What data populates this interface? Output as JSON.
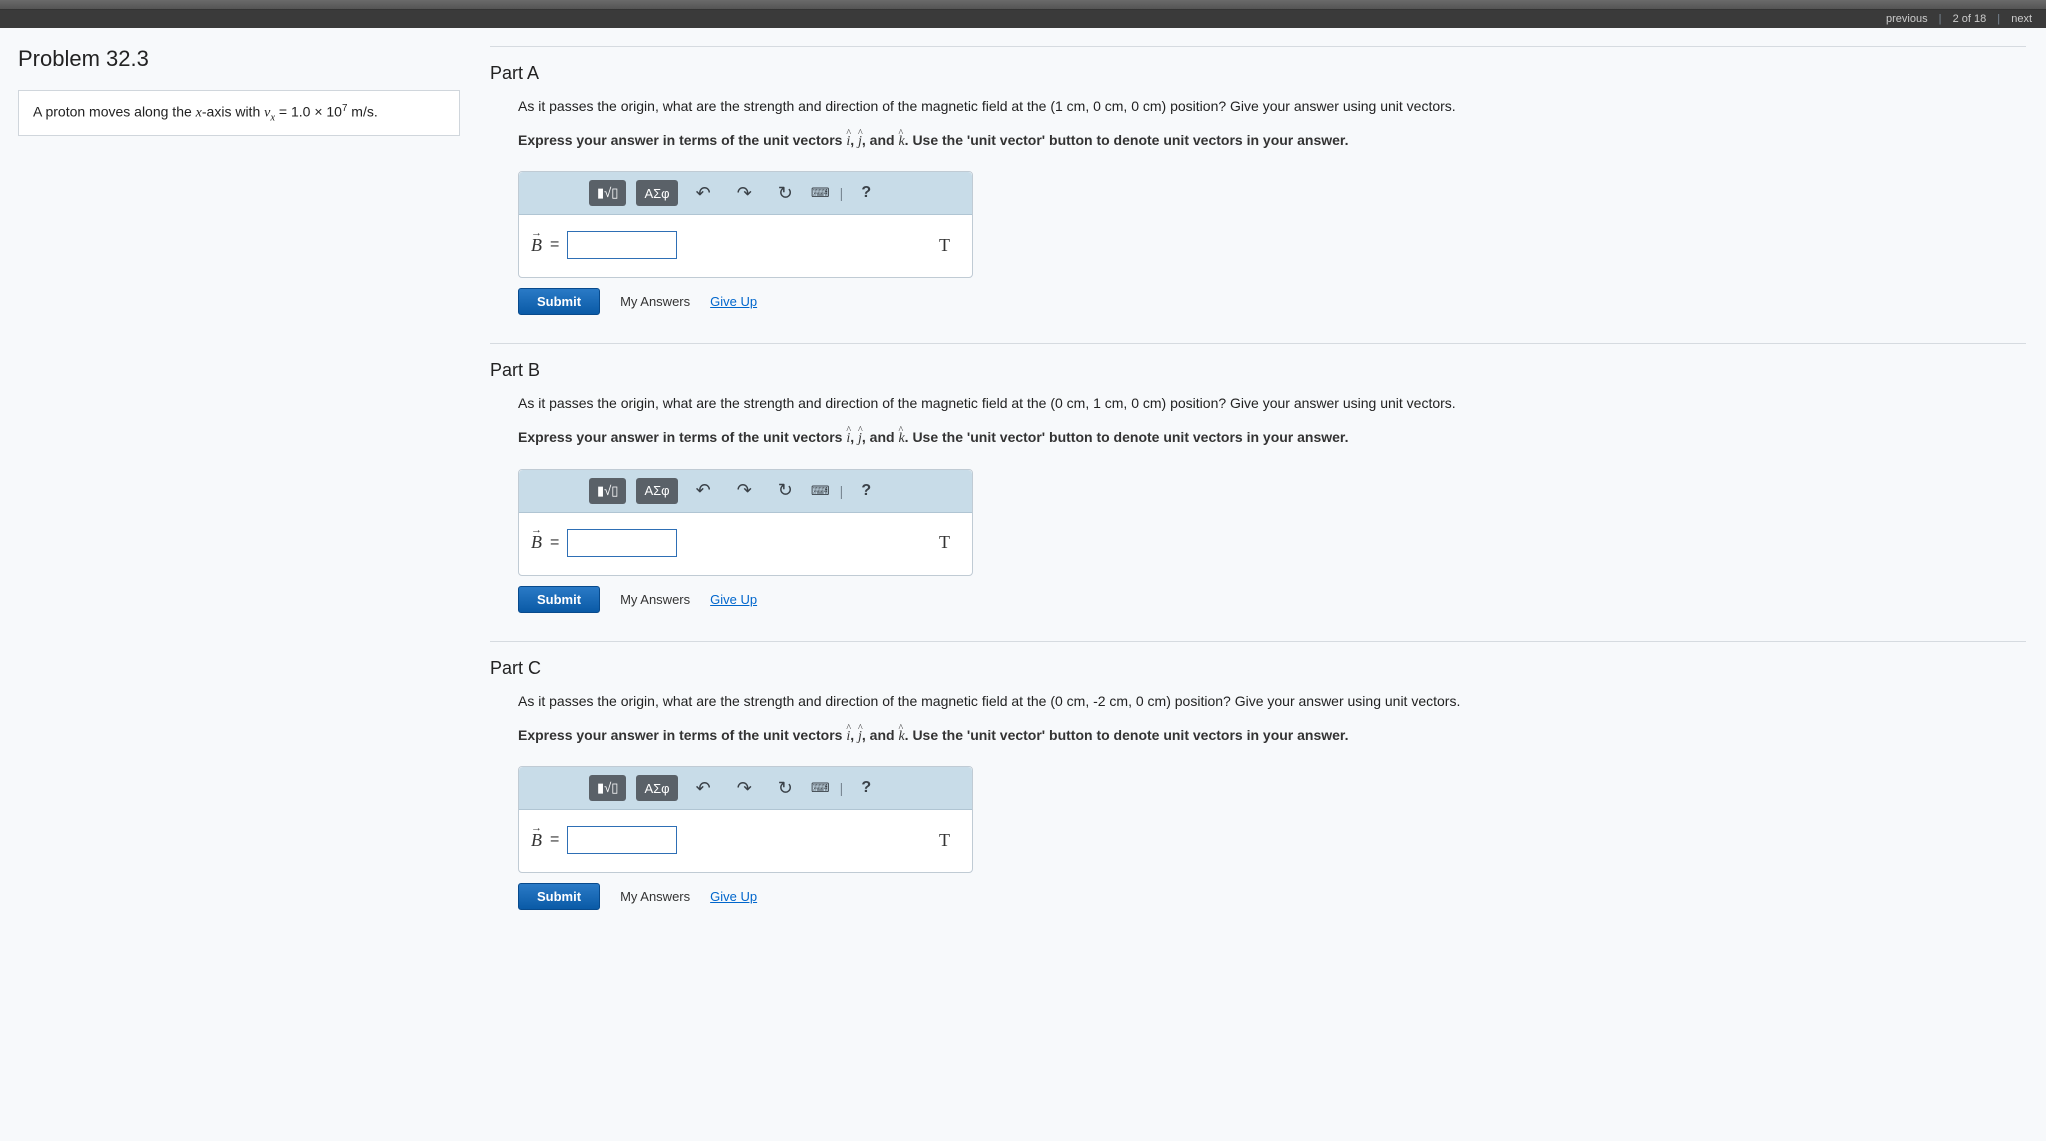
{
  "topnav": {
    "previous": "previous",
    "counter": "2 of 18",
    "next": "next"
  },
  "problem": {
    "title": "Problem 32.3",
    "statement_prefix": "A proton moves along the ",
    "axis_var": "x",
    "statement_mid": "-axis with ",
    "velocity_var": "v",
    "velocity_sub": "x",
    "velocity_eq": " = 1.0 × 10",
    "velocity_exp": "7",
    "velocity_units": " m/s."
  },
  "common": {
    "instruction_prefix": "Express your answer in terms of the unit vectors ",
    "uv_i": "i",
    "uv_j": "j",
    "uv_k": "k",
    "instruction_suffix": ". Use the 'unit vector' button to denote unit vectors in your answer.",
    "answer_var": "B",
    "answer_unit": "T",
    "toolbar": {
      "templates": "▮√▯",
      "greek": "ΑΣφ",
      "undo": "↶",
      "redo": "↷",
      "reset": "↻",
      "keyboard": "⌨",
      "sep": "|",
      "help": "?"
    },
    "submit": "Submit",
    "my_answers": "My Answers",
    "give_up": "Give Up"
  },
  "parts": [
    {
      "label": "Part A",
      "question_prefix": "As it passes the origin, what are the strength and direction of the magnetic field at the ",
      "position_html": "(1 cm, 0 cm, 0 cm)",
      "question_suffix": " position? Give your answer using unit vectors."
    },
    {
      "label": "Part B",
      "question_prefix": "As it passes the origin, what are the strength and direction of the magnetic field at the ",
      "position_html": "(0 cm, 1 cm, 0 cm)",
      "question_suffix": " position? Give your answer using unit vectors."
    },
    {
      "label": "Part C",
      "question_prefix": "As it passes the origin, what are the strength and direction of the magnetic field at the ",
      "position_html": "(0 cm, -2 cm, 0 cm)",
      "question_suffix": " position? Give your answer using unit vectors."
    }
  ]
}
